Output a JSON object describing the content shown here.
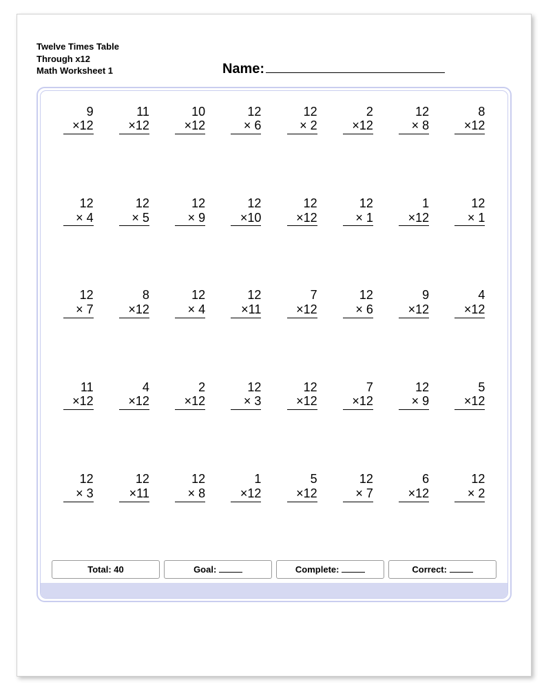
{
  "title": {
    "line1": "Twelve Times Table",
    "line2": "Through x12",
    "line3": "Math Worksheet 1"
  },
  "name_label": "Name:",
  "multiply_symbol": "×",
  "columns": 8,
  "rows": 5,
  "problems": [
    [
      [
        9,
        12
      ],
      [
        11,
        12
      ],
      [
        10,
        12
      ],
      [
        12,
        6
      ],
      [
        12,
        2
      ],
      [
        2,
        12
      ],
      [
        12,
        8
      ],
      [
        8,
        12
      ]
    ],
    [
      [
        12,
        4
      ],
      [
        12,
        5
      ],
      [
        12,
        9
      ],
      [
        12,
        10
      ],
      [
        12,
        12
      ],
      [
        12,
        1
      ],
      [
        1,
        12
      ],
      [
        12,
        1
      ]
    ],
    [
      [
        12,
        7
      ],
      [
        8,
        12
      ],
      [
        12,
        4
      ],
      [
        12,
        11
      ],
      [
        7,
        12
      ],
      [
        12,
        6
      ],
      [
        9,
        12
      ],
      [
        4,
        12
      ]
    ],
    [
      [
        11,
        12
      ],
      [
        4,
        12
      ],
      [
        2,
        12
      ],
      [
        12,
        3
      ],
      [
        12,
        12
      ],
      [
        7,
        12
      ],
      [
        12,
        9
      ],
      [
        5,
        12
      ]
    ],
    [
      [
        12,
        3
      ],
      [
        12,
        11
      ],
      [
        12,
        8
      ],
      [
        1,
        12
      ],
      [
        5,
        12
      ],
      [
        12,
        7
      ],
      [
        6,
        12
      ],
      [
        12,
        2
      ]
    ]
  ],
  "footer": {
    "total_label": "Total:",
    "total_value": "40",
    "goal_label": "Goal:",
    "complete_label": "Complete:",
    "correct_label": "Correct:"
  },
  "colors": {
    "frame_border": "#c9cdef",
    "bottom_band": "#d6d9f2",
    "text": "#000000",
    "page_bg": "#ffffff",
    "box_border": "#9a9a9a"
  },
  "typography": {
    "title_fontsize": 13,
    "name_fontsize": 20,
    "problem_fontsize": 18,
    "footer_fontsize": 13
  }
}
